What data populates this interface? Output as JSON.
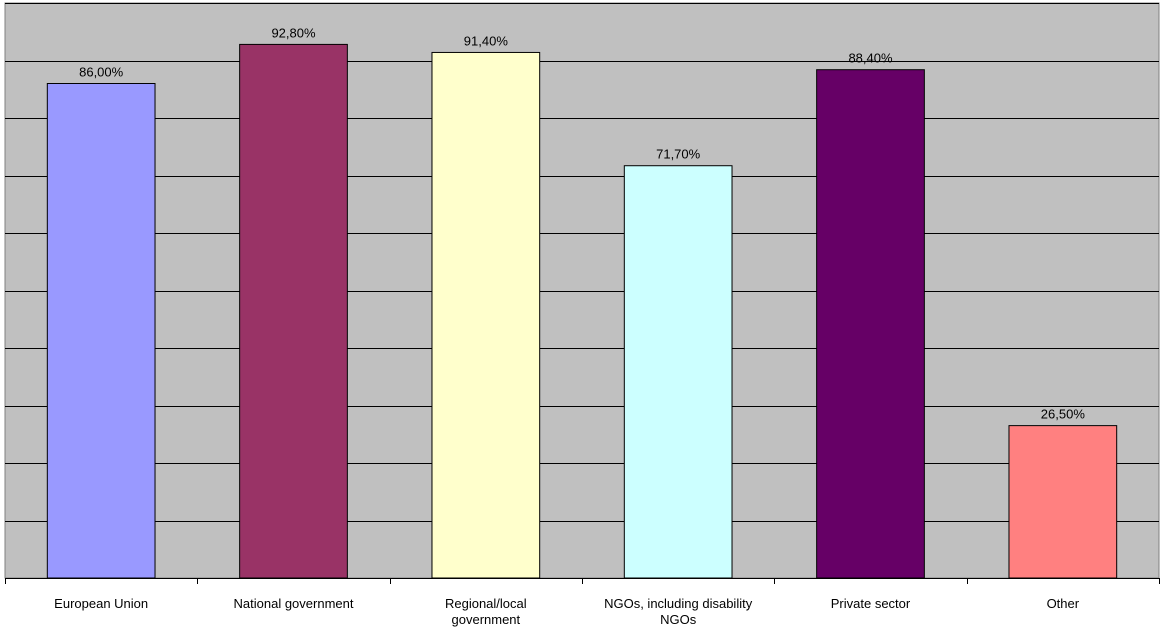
{
  "chart_data": {
    "type": "bar",
    "categories": [
      "European Union",
      "National government",
      "Regional/local government",
      "NGOs, including disability NGOs",
      "Private sector",
      "Other"
    ],
    "category_label_lines": [
      [
        "European Union"
      ],
      [
        "National government"
      ],
      [
        "Regional/local",
        "government"
      ],
      [
        "NGOs, including disability",
        "NGOs"
      ],
      [
        "Private sector"
      ],
      [
        "Other"
      ]
    ],
    "values": [
      86.0,
      92.8,
      91.4,
      71.7,
      88.4,
      26.5
    ],
    "value_labels": [
      "86,00%",
      "92,80%",
      "91,40%",
      "71,70%",
      "88,40%",
      "26,50%"
    ],
    "bar_colors": [
      "#9999FF",
      "#993366",
      "#FFFFCC",
      "#CCFFFF",
      "#660066",
      "#FF8080"
    ],
    "plot_background": "#C0C0C0",
    "ylim": [
      0,
      100
    ],
    "gridlines": true,
    "legend": false,
    "title": "",
    "xlabel": "",
    "ylabel": ""
  }
}
